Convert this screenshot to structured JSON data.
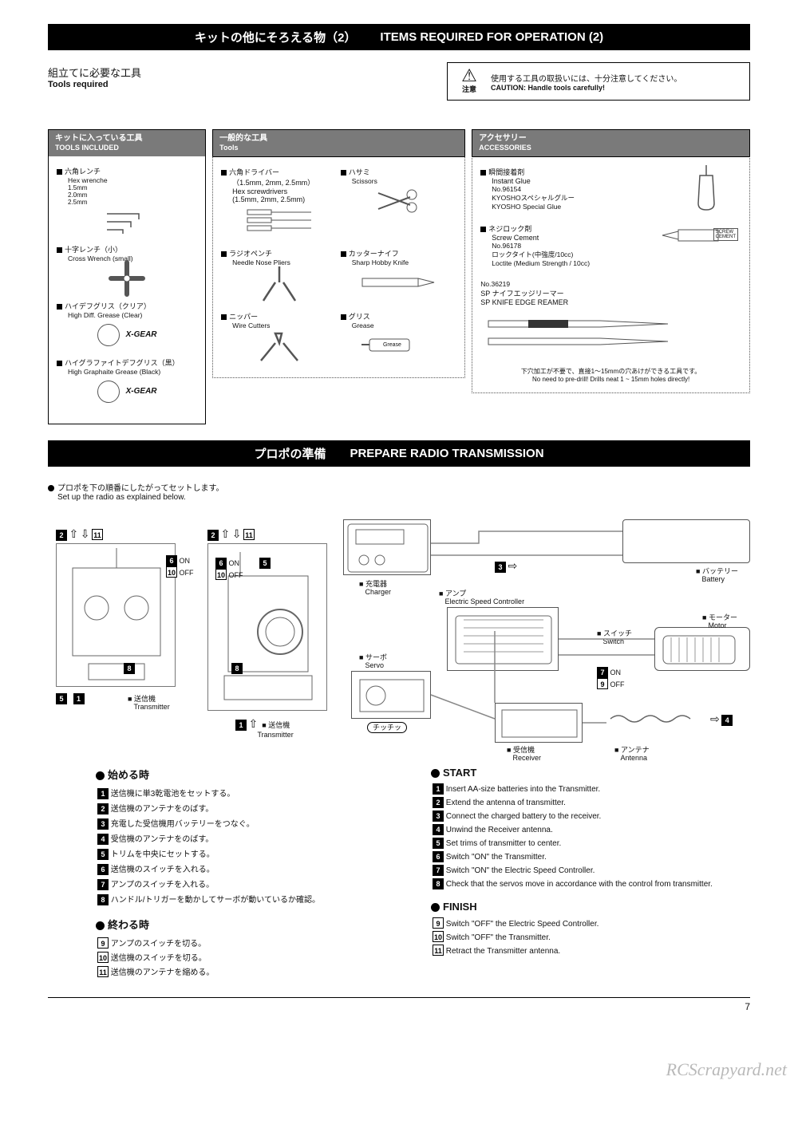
{
  "section1": {
    "header_jp": "キットの他にそろえる物（2）",
    "header_en": "ITEMS REQUIRED FOR OPERATION (2)",
    "tools_req_jp": "組立てに必要な工具",
    "tools_req_en": "Tools required",
    "caution_jp": "使用する工具の取扱いには、十分注意してください。",
    "caution_en": "CAUTION: Handle tools carefully!",
    "caution_label": "注意"
  },
  "panels": {
    "included": {
      "title_jp": "キットに入っている工具",
      "title_en": "TOOLS INCLUDED",
      "hex_jp": "六角レンチ",
      "hex_en": "Hex wrenche",
      "hex_s1": "1.5mm",
      "hex_s2": "2.0mm",
      "hex_s3": "2.5mm",
      "cross_jp": "十字レンチ（小）",
      "cross_en": "Cross Wrench (small)",
      "diff_jp": "ハイデフグリス（クリア）",
      "diff_en": "High Diff. Grease (Clear)",
      "graph_jp": "ハイグラファイトデフグリス（黒）",
      "graph_en": "High Graphaite Grease (Black)",
      "gear_logo": "X-GEAR"
    },
    "tools": {
      "title_jp": "一般的な工具",
      "title_en": "Tools",
      "screwdriver_jp": "六角ドライバー",
      "screwdriver_sub_jp": "（1.5mm, 2mm, 2.5mm）",
      "screwdriver_en": "Hex screwdrivers",
      "screwdriver_sub_en": "(1.5mm, 2mm, 2.5mm)",
      "scissors_jp": "ハサミ",
      "scissors_en": "Scissors",
      "pliers_jp": "ラジオペンチ",
      "pliers_en": "Needle Nose Pliers",
      "knife_jp": "カッターナイフ",
      "knife_en": "Sharp Hobby Knife",
      "nippers_jp": "ニッパー",
      "nippers_en": "Wire Cutters",
      "grease_jp": "グリス",
      "grease_en": "Grease",
      "grease_tube": "Grease"
    },
    "accessories": {
      "title_jp": "アクセサリー",
      "title_en": "ACCESSORIES",
      "glue_jp": "瞬間接着剤",
      "glue_en": "Instant Glue",
      "glue_no": "No.96154",
      "glue_name_jp": "KYOSHOスペシャルグルー",
      "glue_name_en": "KYOSHO Special Glue",
      "cement_jp": "ネジロック剤",
      "cement_en": "Screw Cement",
      "cement_no": "No.96178",
      "cement_name_jp": "ロックタイト(中強度/10cc)",
      "cement_name_en": "Loctite (Medium Strength / 10cc)",
      "cement_label": "SCREW\nCEMENT",
      "reamer_no": "No.36219",
      "reamer_jp": "SP ナイフエッジリーマー",
      "reamer_en": "SP KNIFE EDGE REAMER",
      "note_jp": "下穴加工が不要で、直接1～15mmの穴あけができる工具です。",
      "note_en": "No need to pre-drill!  Drills neat 1 ~ 15mm holes directly!"
    }
  },
  "section2": {
    "header_jp": "プロポの準備",
    "header_en": "PREPARE RADIO TRANSMISSION",
    "intro_jp": "プロポを下の順番にしたがってセットします。",
    "intro_en": "Set up the radio as explained below."
  },
  "diagram": {
    "on": "ON",
    "off": "OFF",
    "charger_jp": "充電器",
    "charger_en": "Charger",
    "battery_jp": "バッテリー",
    "battery_en": "Battery",
    "esc_jp": "アンプ",
    "esc_en": "Electric Speed Controller",
    "servo_jp": "サーボ",
    "servo_en": "Servo",
    "switch_jp": "スイッチ",
    "switch_en": "Switch",
    "motor_jp": "モーター",
    "motor_en": "Motor",
    "receiver_jp": "受信機",
    "receiver_en": "Receiver",
    "antenna_jp": "アンテナ",
    "antenna_en": "Antenna",
    "transmitter_jp": "送信機",
    "transmitter_en": "Transmitter",
    "click": "チッチッ"
  },
  "steps": {
    "start_jp": "始める時",
    "start_en": "START",
    "finish_jp": "終わる時",
    "finish_en": "FINISH",
    "jp": [
      "送信機に単3乾電池をセットする。",
      "送信機のアンテナをのばす。",
      "充電した受信機用バッテリーをつなぐ。",
      "受信機のアンテナをのばす。",
      "トリムを中央にセットする。",
      "送信機のスイッチを入れる。",
      "アンプのスイッチを入れる。",
      "ハンドル/トリガーを動かしてサーボが動いているか確認。"
    ],
    "en": [
      "Insert AA-size batteries into the Transmitter.",
      "Extend the antenna of transmitter.",
      "Connect the charged battery to the receiver.",
      "Unwind the Receiver antenna.",
      "Set trims of transmitter to center.",
      "Switch \"ON\" the Transmitter.",
      "Switch \"ON\" the Electric Speed Controller.",
      "Check that the servos move in accordance with the control from transmitter."
    ],
    "finish_jp_steps": [
      "アンプのスイッチを切る。",
      "送信機のスイッチを切る。",
      "送信機のアンテナを縮める。"
    ],
    "finish_en_steps": [
      "Switch \"OFF\" the Electric Speed Controller.",
      "Switch \"OFF\" the Transmitter.",
      "Retract the Transmitter antenna."
    ]
  },
  "page_number": "7",
  "watermark": "RCScrapyard.net"
}
